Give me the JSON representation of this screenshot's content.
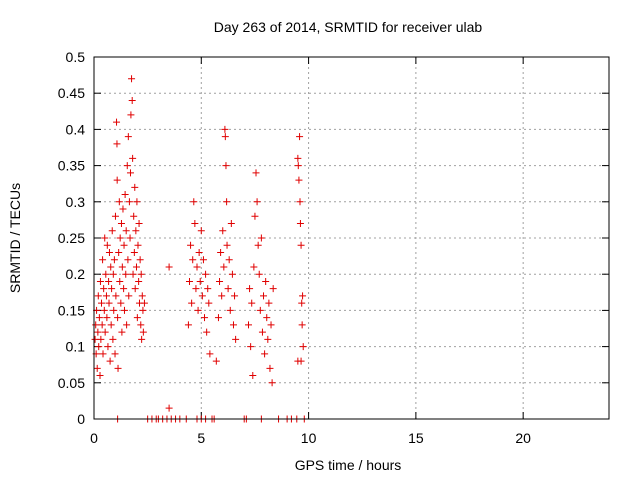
{
  "colors": {
    "marker": "#e00000",
    "grid": "#a0a0a0",
    "axis": "#000000"
  },
  "chart_data": {
    "type": "scatter",
    "title": "Day 263 of 2014, SRMTID for receiver ulab",
    "xlabel": "GPS time / hours",
    "ylabel": "SRMTID / TECUs",
    "xlim": [
      0,
      24
    ],
    "ylim": [
      0,
      0.5
    ],
    "grid": true,
    "marker": "+",
    "x_ticks": [
      0,
      5,
      10,
      15,
      20
    ],
    "x_tick_labels": [
      "0",
      "5",
      "10",
      "15",
      "20"
    ],
    "y_ticks": [
      0,
      0.05,
      0.1,
      0.15,
      0.2,
      0.25,
      0.3,
      0.35,
      0.4,
      0.45,
      0.5
    ],
    "y_tick_labels": [
      "0",
      "0.05",
      "0.1",
      "0.15",
      "0.2",
      "0.25",
      "0.3",
      "0.35",
      "0.4",
      "0.45",
      "0.5"
    ],
    "series": [
      {
        "name": "SRMTID",
        "points": [
          [
            0.05,
            0.11
          ],
          [
            0.08,
            0.13
          ],
          [
            0.1,
            0.09
          ],
          [
            0.12,
            0.15
          ],
          [
            0.15,
            0.07
          ],
          [
            0.18,
            0.12
          ],
          [
            0.2,
            0.17
          ],
          [
            0.22,
            0.1
          ],
          [
            0.25,
            0.14
          ],
          [
            0.28,
            0.06
          ],
          [
            0.3,
            0.19
          ],
          [
            0.32,
            0.11
          ],
          [
            0.35,
            0.16
          ],
          [
            0.38,
            0.13
          ],
          [
            0.4,
            0.22
          ],
          [
            0.42,
            0.09
          ],
          [
            0.45,
            0.18
          ],
          [
            0.48,
            0.15
          ],
          [
            0.5,
            0.25
          ],
          [
            0.52,
            0.12
          ],
          [
            0.55,
            0.2
          ],
          [
            0.58,
            0.17
          ],
          [
            0.6,
            0.14
          ],
          [
            0.62,
            0.24
          ],
          [
            0.65,
            0.1
          ],
          [
            0.68,
            0.19
          ],
          [
            0.7,
            0.16
          ],
          [
            0.72,
            0.23
          ],
          [
            0.75,
            0.08
          ],
          [
            0.78,
            0.21
          ],
          [
            0.8,
            0.13
          ],
          [
            0.82,
            0.18
          ],
          [
            0.85,
            0.26
          ],
          [
            0.88,
            0.11
          ],
          [
            0.9,
            0.2
          ],
          [
            0.92,
            0.15
          ],
          [
            0.95,
            0.22
          ],
          [
            0.98,
            0.09
          ],
          [
            1.0,
            0.28
          ],
          [
            1.02,
            0.17
          ],
          [
            1.05,
            0.41
          ],
          [
            1.07,
            0.38
          ],
          [
            1.08,
            0.33
          ],
          [
            1.1,
            0.14
          ],
          [
            1.12,
            0.07
          ],
          [
            1.15,
            0.23
          ],
          [
            1.18,
            0.3
          ],
          [
            1.2,
            0.19
          ],
          [
            1.22,
            0.25
          ],
          [
            1.25,
            0.16
          ],
          [
            1.28,
            0.27
          ],
          [
            1.3,
            0.12
          ],
          [
            1.32,
            0.21
          ],
          [
            1.35,
            0.29
          ],
          [
            1.38,
            0.18
          ],
          [
            1.4,
            0.24
          ],
          [
            1.42,
            0.15
          ],
          [
            1.45,
            0.31
          ],
          [
            1.48,
            0.2
          ],
          [
            1.5,
            0.26
          ],
          [
            1.52,
            0.13
          ],
          [
            1.55,
            0.35
          ],
          [
            1.58,
            0.22
          ],
          [
            1.6,
            0.39
          ],
          [
            1.62,
            0.17
          ],
          [
            1.65,
            0.3
          ],
          [
            1.68,
            0.25
          ],
          [
            1.7,
            0.34
          ],
          [
            1.72,
            0.42
          ],
          [
            1.75,
            0.47
          ],
          [
            1.78,
            0.44
          ],
          [
            1.8,
            0.36
          ],
          [
            1.82,
            0.2
          ],
          [
            1.85,
            0.28
          ],
          [
            1.88,
            0.23
          ],
          [
            1.9,
            0.32
          ],
          [
            1.92,
            0.18
          ],
          [
            1.95,
            0.26
          ],
          [
            1.98,
            0.21
          ],
          [
            2.0,
            0.3
          ],
          [
            2.02,
            0.14
          ],
          [
            2.05,
            0.24
          ],
          [
            2.08,
            0.19
          ],
          [
            2.1,
            0.27
          ],
          [
            2.12,
            0.16
          ],
          [
            2.15,
            0.22
          ],
          [
            2.18,
            0.13
          ],
          [
            2.2,
            0.2
          ],
          [
            2.22,
            0.11
          ],
          [
            2.25,
            0.17
          ],
          [
            2.28,
            0.15
          ],
          [
            2.3,
            0.12
          ],
          [
            2.35,
            0.16
          ],
          [
            1.1,
            0.0
          ],
          [
            2.5,
            0.0
          ],
          [
            2.7,
            0.0
          ],
          [
            2.9,
            0.0
          ],
          [
            3.0,
            0.0
          ],
          [
            3.2,
            0.0
          ],
          [
            3.4,
            0.0
          ],
          [
            3.5,
            0.015
          ],
          [
            3.6,
            0.0
          ],
          [
            3.8,
            0.0
          ],
          [
            4.0,
            0.0
          ],
          [
            4.3,
            0.0
          ],
          [
            3.5,
            0.21
          ],
          [
            4.4,
            0.13
          ],
          [
            4.45,
            0.19
          ],
          [
            4.5,
            0.24
          ],
          [
            4.55,
            0.16
          ],
          [
            4.6,
            0.22
          ],
          [
            4.65,
            0.3
          ],
          [
            4.7,
            0.27
          ],
          [
            4.75,
            0.18
          ],
          [
            4.8,
            0.21
          ],
          [
            4.85,
            0.15
          ],
          [
            4.9,
            0.23
          ],
          [
            4.95,
            0.19
          ],
          [
            5.0,
            0.26
          ],
          [
            5.05,
            0.17
          ],
          [
            5.1,
            0.22
          ],
          [
            5.15,
            0.14
          ],
          [
            5.2,
            0.2
          ],
          [
            5.25,
            0.12
          ],
          [
            5.3,
            0.18
          ],
          [
            5.35,
            0.16
          ],
          [
            5.4,
            0.09
          ],
          [
            4.8,
            0.0
          ],
          [
            5.0,
            0.0
          ],
          [
            5.2,
            0.0
          ],
          [
            5.5,
            0.0
          ],
          [
            5.6,
            0.0
          ],
          [
            5.7,
            0.08
          ],
          [
            5.8,
            0.14
          ],
          [
            5.85,
            0.19
          ],
          [
            5.9,
            0.23
          ],
          [
            5.95,
            0.17
          ],
          [
            6.0,
            0.26
          ],
          [
            6.05,
            0.21
          ],
          [
            6.1,
            0.4
          ],
          [
            6.12,
            0.39
          ],
          [
            6.15,
            0.35
          ],
          [
            6.18,
            0.3
          ],
          [
            6.2,
            0.24
          ],
          [
            6.25,
            0.18
          ],
          [
            6.3,
            0.22
          ],
          [
            6.35,
            0.15
          ],
          [
            6.4,
            0.27
          ],
          [
            6.45,
            0.2
          ],
          [
            6.5,
            0.13
          ],
          [
            6.55,
            0.17
          ],
          [
            6.6,
            0.11
          ],
          [
            7.0,
            0.0
          ],
          [
            7.1,
            0.0
          ],
          [
            7.2,
            0.13
          ],
          [
            7.25,
            0.18
          ],
          [
            7.3,
            0.1
          ],
          [
            7.35,
            0.16
          ],
          [
            7.4,
            0.06
          ],
          [
            7.45,
            0.21
          ],
          [
            7.5,
            0.28
          ],
          [
            7.55,
            0.34
          ],
          [
            7.6,
            0.3
          ],
          [
            7.65,
            0.24
          ],
          [
            7.7,
            0.2
          ],
          [
            7.75,
            0.15
          ],
          [
            7.8,
            0.25
          ],
          [
            7.85,
            0.12
          ],
          [
            7.9,
            0.17
          ],
          [
            7.95,
            0.09
          ],
          [
            8.0,
            0.19
          ],
          [
            8.05,
            0.14
          ],
          [
            8.1,
            0.11
          ],
          [
            8.15,
            0.16
          ],
          [
            8.2,
            0.07
          ],
          [
            8.25,
            0.13
          ],
          [
            8.3,
            0.05
          ],
          [
            8.35,
            0.18
          ],
          [
            7.8,
            0.0
          ],
          [
            8.6,
            0.0
          ],
          [
            9.0,
            0.0
          ],
          [
            9.2,
            0.0
          ],
          [
            9.45,
            0.0
          ],
          [
            9.5,
            0.36
          ],
          [
            9.52,
            0.35
          ],
          [
            9.55,
            0.33
          ],
          [
            9.58,
            0.39
          ],
          [
            9.6,
            0.3
          ],
          [
            9.62,
            0.27
          ],
          [
            9.65,
            0.24
          ],
          [
            9.68,
            0.16
          ],
          [
            9.7,
            0.13
          ],
          [
            9.72,
            0.17
          ],
          [
            9.75,
            0.1
          ],
          [
            9.5,
            0.08
          ],
          [
            9.65,
            0.08
          ],
          [
            9.8,
            0.0
          ]
        ]
      }
    ]
  }
}
